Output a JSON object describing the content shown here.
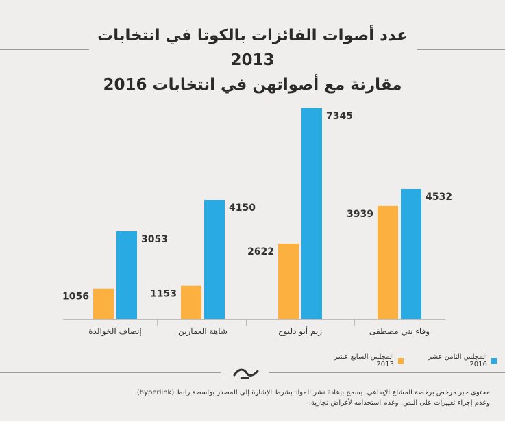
{
  "title": {
    "line1": "عدد أصوات الفائزات بالكوتا في انتخابات 2013",
    "line2": "مقارنة مع أصواتهن في انتخابات 2016"
  },
  "legend": {
    "items": [
      {
        "label": "المجلس الثامن عشر 2016",
        "color": "#29aae2"
      },
      {
        "label": "المجلس السابع عشر 2013",
        "color": "#fbb040"
      }
    ]
  },
  "footer": {
    "line1": "محتوى حبر مرخص برخصة المشاع الإبداعي. يسمح بإعادة نشر المواد بشرط الإشارة إلى المصدر بواسطة رابط (hyperlink)،",
    "line2": "وعدم إجراء تغييرات على النص، وعدم استخدامه لأغراض تجارية."
  },
  "chart_data": {
    "type": "bar",
    "categories": [
      "إنصاف الخوالدة",
      "شاهة العمارين",
      "ريم أبو دلبوح",
      "وفاء بني مصطفى"
    ],
    "series": [
      {
        "name": "المجلس السابع عشر 2013",
        "values": [
          1056,
          1153,
          2622,
          3939
        ],
        "color": "#fbb040"
      },
      {
        "name": "المجلس الثامن عشر 2016",
        "values": [
          3053,
          4150,
          7345,
          4532
        ],
        "color": "#29aae2"
      }
    ],
    "title": "عدد أصوات الفائزات بالكوتا في انتخابات 2013 مقارنة مع أصواتهن في انتخابات 2016",
    "ylim": [
      0,
      7345
    ],
    "grid": false,
    "legend_position": "bottom-right"
  }
}
